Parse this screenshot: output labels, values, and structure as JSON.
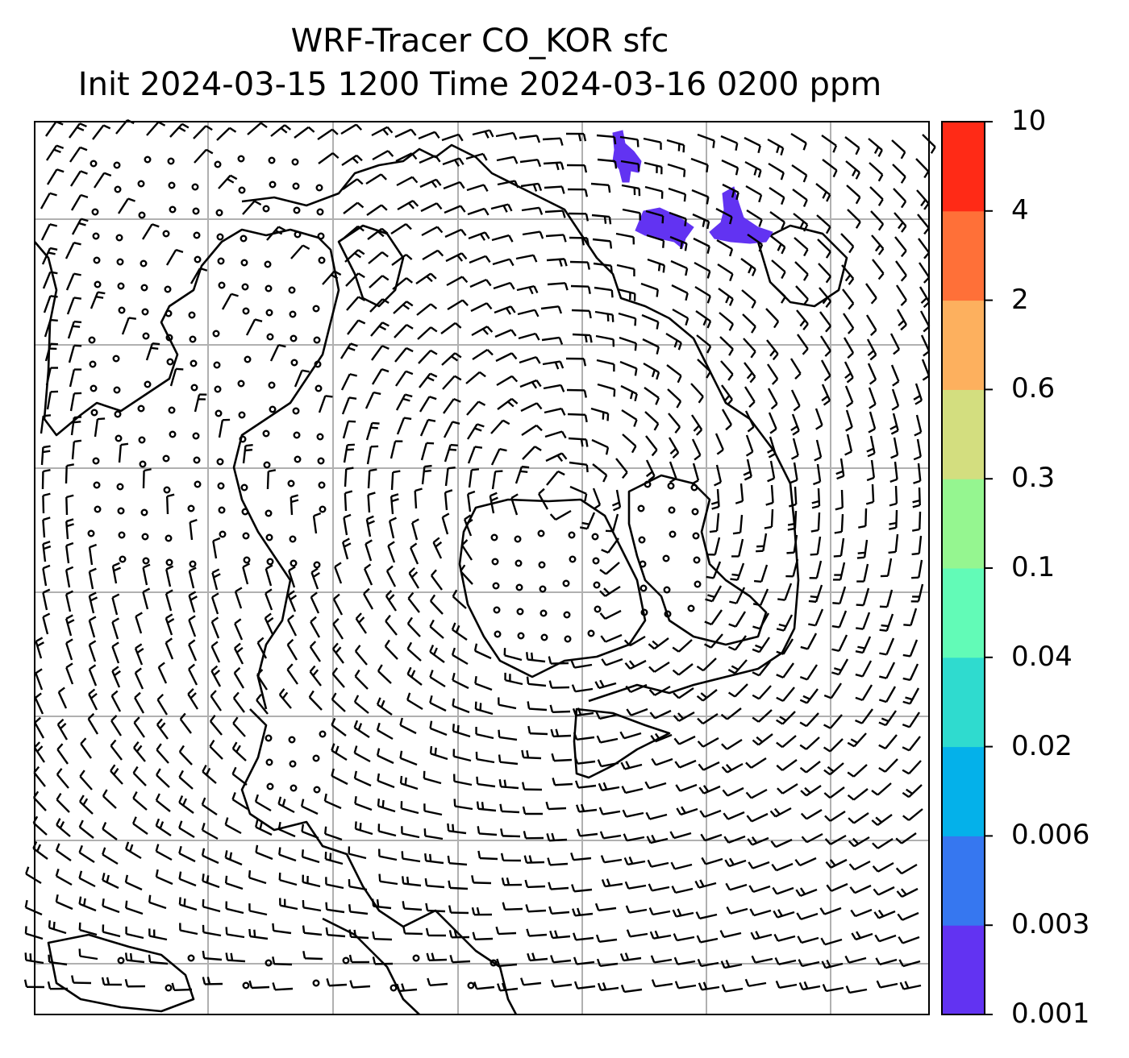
{
  "title": {
    "line1": "WRF-Tracer CO_KOR sfc",
    "line2": "Init 2024-03-15 1200 Time 2024-03-16 0200 ppm"
  },
  "colorbar": {
    "tick_labels": [
      "0.001",
      "0.003",
      "0.006",
      "0.02",
      "0.04",
      "0.1",
      "0.3",
      "0.6",
      "2",
      "4",
      "10"
    ],
    "colors": [
      "#6233f2",
      "#3677f0",
      "#04b1ea",
      "#2fdbcf",
      "#62fbb7",
      "#95f690",
      "#d3de7f",
      "#fdb05e",
      "#ff7038",
      "#ff2a16"
    ]
  },
  "map": {
    "field": "CO_KOR surface concentration with wind barbs",
    "frame_color": "#000000",
    "gridline_color": "#b0b0b0",
    "coastline_color": "#000000",
    "tracer_fill_color": "#6233f2"
  }
}
